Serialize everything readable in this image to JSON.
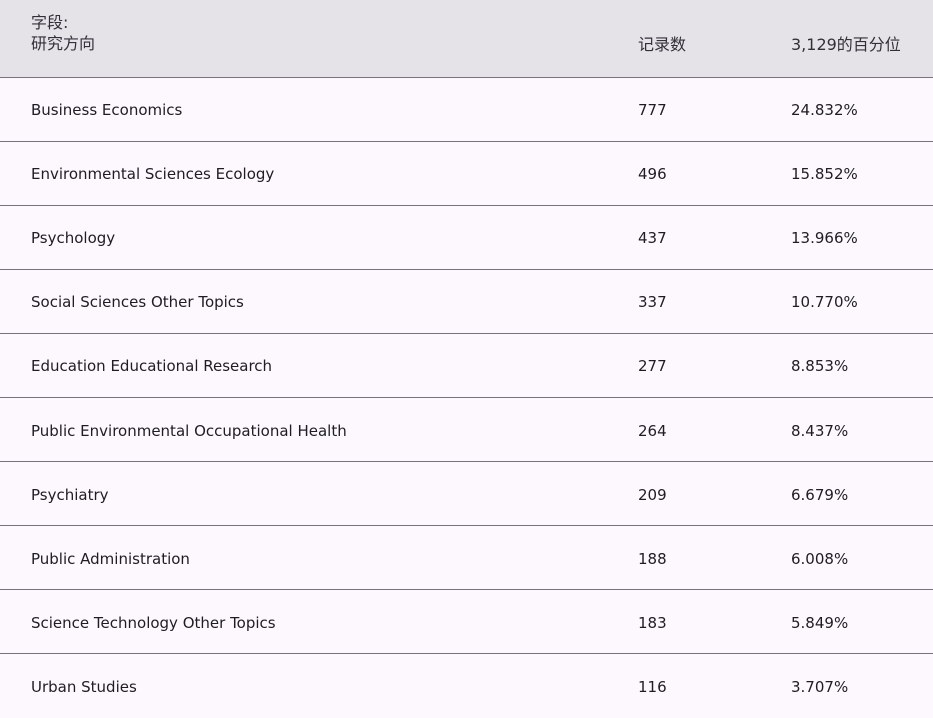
{
  "header": {
    "field_label": "字段:",
    "field_name": "研究方向",
    "count_label": "记录数",
    "percent_label": "3,129的百分位"
  },
  "rows": [
    {
      "field": "Business Economics",
      "count": "777",
      "percent": "24.832%"
    },
    {
      "field": "Environmental Sciences Ecology",
      "count": "496",
      "percent": "15.852%"
    },
    {
      "field": "Psychology",
      "count": "437",
      "percent": "13.966%"
    },
    {
      "field": "Social Sciences Other Topics",
      "count": "337",
      "percent": "10.770%"
    },
    {
      "field": "Education Educational Research",
      "count": "277",
      "percent": "8.853%"
    },
    {
      "field": "Public Environmental Occupational Health",
      "count": "264",
      "percent": "8.437%"
    },
    {
      "field": "Psychiatry",
      "count": "209",
      "percent": "6.679%"
    },
    {
      "field": "Public Administration",
      "count": "188",
      "percent": "6.008%"
    },
    {
      "field": "Science Technology Other Topics",
      "count": "183",
      "percent": "5.849%"
    },
    {
      "field": "Urban Studies",
      "count": "116",
      "percent": "3.707%"
    }
  ]
}
